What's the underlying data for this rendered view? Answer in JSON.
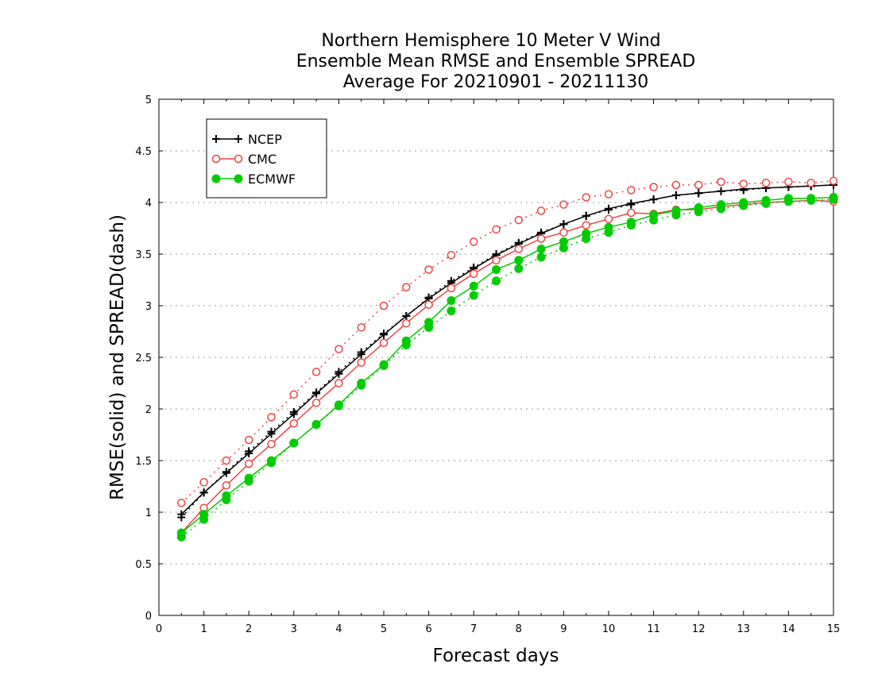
{
  "chart_data": {
    "type": "line",
    "title_lines": [
      "Northern Hemisphere 10 Meter V Wind",
      "Ensemble Mean RMSE and Ensemble SPREAD",
      "Average For 20210901 - 20211130"
    ],
    "xlabel": "Forecast days",
    "ylabel": "RMSE(solid) and SPREAD(dash)",
    "xlim": [
      0,
      15
    ],
    "ylim": [
      0,
      5
    ],
    "xticks": [
      0,
      1,
      2,
      3,
      4,
      5,
      6,
      7,
      8,
      9,
      10,
      11,
      12,
      13,
      14,
      15
    ],
    "yticks": [
      0,
      0.5,
      1,
      1.5,
      2,
      2.5,
      3,
      3.5,
      4,
      4.5,
      5
    ],
    "ytick_labels": [
      "0",
      "0.5",
      "1",
      "1.5",
      "2",
      "2.5",
      "3",
      "3.5",
      "4",
      "4.5",
      "5"
    ],
    "grid": "horizontal dotted",
    "legend_position": "top-left",
    "x": [
      0.5,
      1,
      1.5,
      2,
      2.5,
      3,
      3.5,
      4,
      4.5,
      5,
      5.5,
      6,
      6.5,
      7,
      7.5,
      8,
      8.5,
      9,
      9.5,
      10,
      10.5,
      11,
      11.5,
      12,
      12.5,
      13,
      13.5,
      14,
      14.5,
      15
    ],
    "series": [
      {
        "name": "NCEP",
        "color": "#000000",
        "marker": "plus",
        "rmse": [
          0.98,
          1.19,
          1.38,
          1.57,
          1.76,
          1.95,
          2.15,
          2.34,
          2.53,
          2.72,
          2.9,
          3.07,
          3.22,
          3.36,
          3.49,
          3.6,
          3.7,
          3.79,
          3.87,
          3.94,
          3.99,
          4.03,
          4.07,
          4.09,
          4.11,
          4.13,
          4.14,
          4.15,
          4.16,
          4.17
        ],
        "spread": [
          0.95,
          1.19,
          1.39,
          1.59,
          1.78,
          1.97,
          2.16,
          2.36,
          2.55,
          2.73,
          2.9,
          3.08,
          3.24,
          3.37,
          3.5,
          3.61,
          3.71,
          3.79,
          3.87,
          3.93,
          3.98,
          4.03,
          4.07,
          4.09,
          4.11,
          4.12,
          4.14,
          4.15,
          4.16,
          4.17
        ]
      },
      {
        "name": "CMC",
        "color": "#ee4444",
        "marker": "open-circle",
        "rmse": [
          0.8,
          1.04,
          1.26,
          1.47,
          1.66,
          1.86,
          2.06,
          2.25,
          2.45,
          2.64,
          2.83,
          3.01,
          3.17,
          3.31,
          3.44,
          3.55,
          3.65,
          3.71,
          3.78,
          3.84,
          3.9,
          3.89,
          3.93,
          3.93,
          3.96,
          3.98,
          4.0,
          4.01,
          4.02,
          4.01
        ],
        "spread": [
          1.09,
          1.29,
          1.5,
          1.7,
          1.92,
          2.14,
          2.36,
          2.58,
          2.79,
          3.0,
          3.18,
          3.35,
          3.49,
          3.62,
          3.74,
          3.83,
          3.92,
          3.98,
          4.05,
          4.08,
          4.12,
          4.15,
          4.17,
          4.17,
          4.2,
          4.18,
          4.19,
          4.2,
          4.19,
          4.21
        ]
      },
      {
        "name": "ECMWF",
        "color": "#00cc00",
        "marker": "filled-circle",
        "rmse": [
          0.8,
          0.98,
          1.16,
          1.33,
          1.5,
          1.67,
          1.85,
          2.04,
          2.25,
          2.43,
          2.66,
          2.84,
          3.05,
          3.19,
          3.35,
          3.44,
          3.55,
          3.62,
          3.7,
          3.76,
          3.81,
          3.88,
          3.92,
          3.95,
          3.98,
          4.0,
          4.02,
          4.04,
          4.04,
          4.05
        ],
        "spread": [
          0.76,
          0.93,
          1.12,
          1.3,
          1.48,
          1.67,
          1.85,
          2.03,
          2.23,
          2.42,
          2.62,
          2.79,
          2.95,
          3.1,
          3.24,
          3.36,
          3.47,
          3.56,
          3.65,
          3.71,
          3.78,
          3.83,
          3.88,
          3.91,
          3.94,
          3.97,
          3.99,
          4.01,
          4.02,
          4.03
        ]
      }
    ]
  }
}
